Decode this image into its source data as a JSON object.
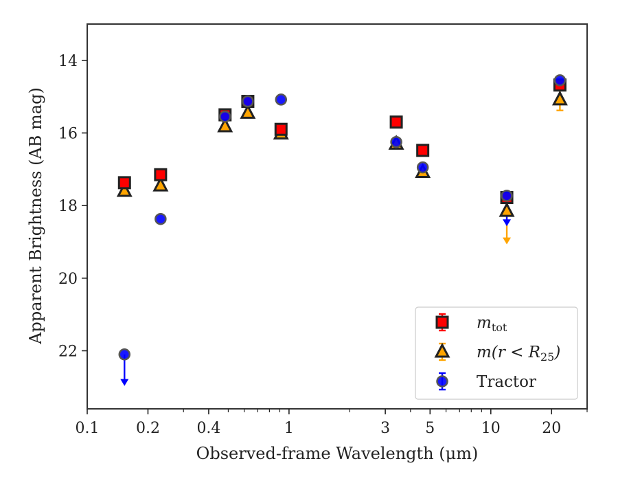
{
  "chart_data": {
    "type": "scatter",
    "xlabel": "Observed-frame Wavelength (μm)",
    "ylabel": "Apparent Brightness (AB mag)",
    "x_scale": "log",
    "xlim": [
      0.1,
      30
    ],
    "ylim": [
      23.6,
      13.0
    ],
    "y_inverted": true,
    "x_ticks": [
      {
        "value": 0.1,
        "label": "0.1"
      },
      {
        "value": 0.2,
        "label": "0.2"
      },
      {
        "value": 0.4,
        "label": "0.4"
      },
      {
        "value": 1,
        "label": "1"
      },
      {
        "value": 3,
        "label": "3"
      },
      {
        "value": 5,
        "label": "5"
      },
      {
        "value": 10,
        "label": "10"
      },
      {
        "value": 20,
        "label": "20"
      }
    ],
    "y_ticks": [
      {
        "value": 14,
        "label": "14"
      },
      {
        "value": 16,
        "label": "16"
      },
      {
        "value": 18,
        "label": "18"
      },
      {
        "value": 20,
        "label": "20"
      },
      {
        "value": 22,
        "label": "22"
      }
    ],
    "legend_position": "lower right",
    "series": [
      {
        "name": "m_tot",
        "marker": "square",
        "color": "#ff0000",
        "edge": "#222222",
        "points": [
          {
            "x": 0.153,
            "y": 17.37
          },
          {
            "x": 0.231,
            "y": 17.15
          },
          {
            "x": 0.482,
            "y": 15.5
          },
          {
            "x": 0.625,
            "y": 15.13
          },
          {
            "x": 0.913,
            "y": 15.9
          },
          {
            "x": 3.4,
            "y": 15.7
          },
          {
            "x": 4.6,
            "y": 16.48
          },
          {
            "x": 12.0,
            "y": 17.78
          },
          {
            "x": 22.0,
            "y": 14.68
          }
        ]
      },
      {
        "name": "m(r < R_25)",
        "marker": "triangle",
        "color": "#ffa500",
        "edge": "#222222",
        "points": [
          {
            "x": 0.153,
            "y": 17.6
          },
          {
            "x": 0.231,
            "y": 17.45
          },
          {
            "x": 0.482,
            "y": 15.82
          },
          {
            "x": 0.625,
            "y": 15.45
          },
          {
            "x": 0.913,
            "y": 16.02
          },
          {
            "x": 3.4,
            "y": 16.3
          },
          {
            "x": 4.6,
            "y": 17.08
          },
          {
            "x": 12.0,
            "y": 18.15,
            "upper_limit": true,
            "arrow_to": 19.05
          },
          {
            "x": 22.0,
            "y": 15.08,
            "err": 0.3
          }
        ]
      },
      {
        "name": "Tractor",
        "marker": "circle",
        "color": "#0000ff",
        "edge": "#555555",
        "points": [
          {
            "x": 0.153,
            "y": 22.1,
            "upper_limit": true,
            "arrow_to": 22.95
          },
          {
            "x": 0.231,
            "y": 18.37
          },
          {
            "x": 0.482,
            "y": 15.55
          },
          {
            "x": 0.625,
            "y": 15.13
          },
          {
            "x": 0.913,
            "y": 15.08
          },
          {
            "x": 3.4,
            "y": 16.25
          },
          {
            "x": 4.6,
            "y": 16.95
          },
          {
            "x": 12.0,
            "y": 17.73,
            "upper_limit": true,
            "arrow_to": 18.55
          },
          {
            "x": 22.0,
            "y": 14.55
          }
        ]
      }
    ]
  }
}
